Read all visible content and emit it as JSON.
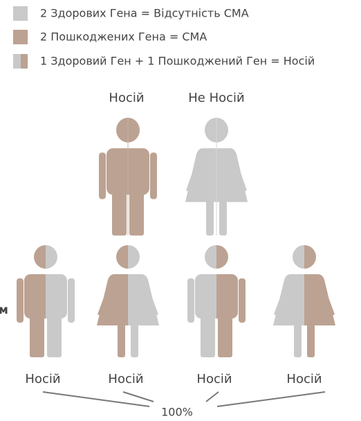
{
  "legend": [
    "2 Здорових Гена = Відсутність СМА",
    "2 Пошкоджених Гена = СМА",
    "1 Здоровий Ген + 1 Пошкоджений Ген = Носій"
  ],
  "parents": [
    "Носій",
    "Не Носій"
  ],
  "children": [
    "Носій",
    "Носій",
    "Носій",
    "Носій"
  ],
  "total": "100%",
  "side_label": "м"
}
